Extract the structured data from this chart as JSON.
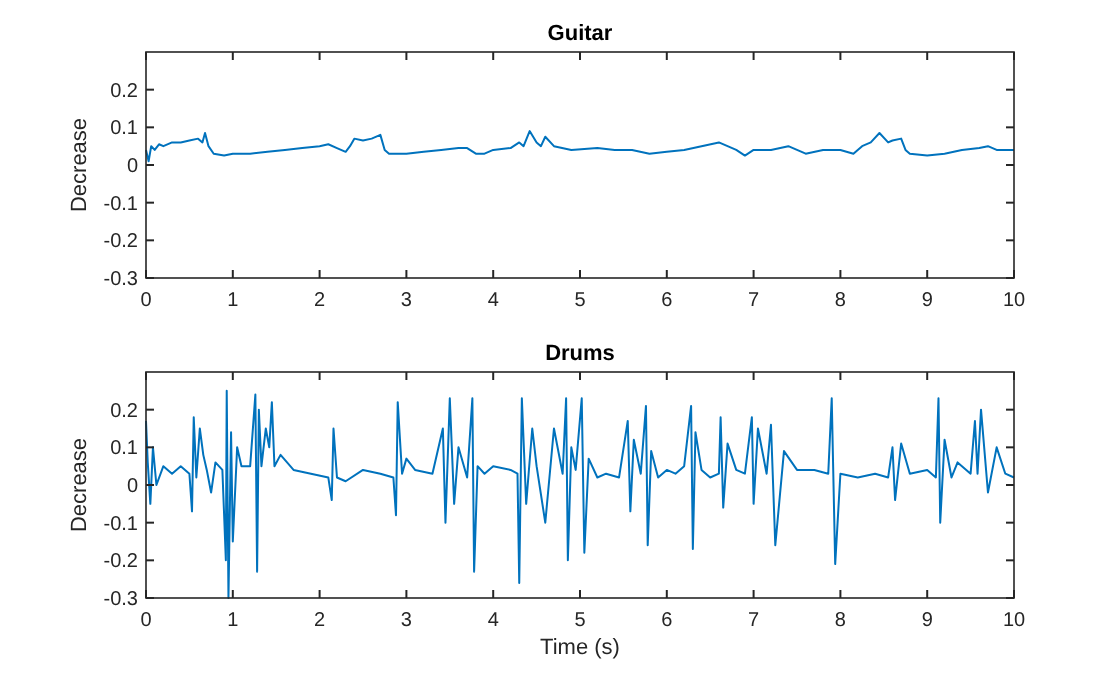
{
  "chart_data": [
    {
      "type": "line",
      "title": "Guitar",
      "ylabel": "Decrease",
      "xlim": [
        0,
        10
      ],
      "xticks": [
        0,
        1,
        2,
        3,
        4,
        5,
        6,
        7,
        8,
        9,
        10
      ],
      "ylim": [
        -0.3,
        0.3
      ],
      "yticks": [
        -0.3,
        -0.2,
        -0.1,
        0,
        0.1,
        0.2
      ],
      "grid": false,
      "series": [
        {
          "color": "#0072bd",
          "x": [
            0,
            0.03,
            0.06,
            0.1,
            0.15,
            0.2,
            0.3,
            0.4,
            0.5,
            0.6,
            0.65,
            0.68,
            0.72,
            0.78,
            0.9,
            1.0,
            1.2,
            1.4,
            1.6,
            1.8,
            2.0,
            2.1,
            2.2,
            2.3,
            2.35,
            2.4,
            2.5,
            2.6,
            2.7,
            2.75,
            2.8,
            3.0,
            3.2,
            3.4,
            3.6,
            3.7,
            3.8,
            3.9,
            4.0,
            4.2,
            4.3,
            4.35,
            4.42,
            4.5,
            4.55,
            4.6,
            4.7,
            4.9,
            5.2,
            5.4,
            5.6,
            5.8,
            6.0,
            6.2,
            6.4,
            6.6,
            6.8,
            6.9,
            7.0,
            7.2,
            7.4,
            7.5,
            7.6,
            7.8,
            8.0,
            8.15,
            8.25,
            8.35,
            8.45,
            8.55,
            8.6,
            8.7,
            8.75,
            8.8,
            9.0,
            9.2,
            9.4,
            9.6,
            9.7,
            9.8,
            10
          ],
          "values": [
            0.04,
            0.01,
            0.05,
            0.04,
            0.055,
            0.05,
            0.06,
            0.06,
            0.065,
            0.07,
            0.06,
            0.085,
            0.05,
            0.03,
            0.025,
            0.03,
            0.03,
            0.035,
            0.04,
            0.045,
            0.05,
            0.055,
            0.045,
            0.035,
            0.05,
            0.07,
            0.065,
            0.07,
            0.08,
            0.04,
            0.03,
            0.03,
            0.035,
            0.04,
            0.045,
            0.045,
            0.03,
            0.03,
            0.04,
            0.045,
            0.06,
            0.05,
            0.09,
            0.06,
            0.05,
            0.075,
            0.05,
            0.04,
            0.045,
            0.04,
            0.04,
            0.03,
            0.035,
            0.04,
            0.05,
            0.06,
            0.04,
            0.025,
            0.04,
            0.04,
            0.05,
            0.04,
            0.03,
            0.04,
            0.04,
            0.03,
            0.05,
            0.06,
            0.085,
            0.06,
            0.065,
            0.07,
            0.04,
            0.03,
            0.025,
            0.03,
            0.04,
            0.045,
            0.05,
            0.04,
            0.04
          ]
        }
      ]
    },
    {
      "type": "line",
      "title": "Drums",
      "xlabel": "Time (s)",
      "ylabel": "Decrease",
      "xlim": [
        0,
        10
      ],
      "xticks": [
        0,
        1,
        2,
        3,
        4,
        5,
        6,
        7,
        8,
        9,
        10
      ],
      "ylim": [
        -0.3,
        0.3
      ],
      "yticks": [
        -0.3,
        -0.2,
        -0.1,
        0,
        0.1,
        0.2
      ],
      "grid": false,
      "series": [
        {
          "color": "#0072bd",
          "x": [
            0,
            0.02,
            0.05,
            0.08,
            0.12,
            0.2,
            0.3,
            0.4,
            0.5,
            0.53,
            0.55,
            0.58,
            0.62,
            0.66,
            0.7,
            0.75,
            0.8,
            0.88,
            0.92,
            0.93,
            0.95,
            0.98,
            1.0,
            1.05,
            1.1,
            1.2,
            1.26,
            1.28,
            1.3,
            1.33,
            1.38,
            1.42,
            1.45,
            1.48,
            1.55,
            1.7,
            1.9,
            2.1,
            2.14,
            2.16,
            2.2,
            2.3,
            2.5,
            2.7,
            2.85,
            2.88,
            2.9,
            2.95,
            3.0,
            3.1,
            3.3,
            3.42,
            3.45,
            3.5,
            3.55,
            3.6,
            3.7,
            3.76,
            3.78,
            3.82,
            3.9,
            4.0,
            4.2,
            4.28,
            4.3,
            4.33,
            4.38,
            4.45,
            4.5,
            4.6,
            4.7,
            4.8,
            4.84,
            4.86,
            4.9,
            4.95,
            5.02,
            5.05,
            5.1,
            5.2,
            5.3,
            5.45,
            5.55,
            5.58,
            5.62,
            5.7,
            5.76,
            5.78,
            5.82,
            5.9,
            6.0,
            6.1,
            6.2,
            6.28,
            6.3,
            6.33,
            6.4,
            6.5,
            6.6,
            6.62,
            6.65,
            6.7,
            6.8,
            6.9,
            6.98,
            7.0,
            7.05,
            7.15,
            7.2,
            7.25,
            7.35,
            7.5,
            7.7,
            7.86,
            7.9,
            7.94,
            8.0,
            8.2,
            8.4,
            8.55,
            8.6,
            8.63,
            8.7,
            8.8,
            9.0,
            9.1,
            9.13,
            9.15,
            9.2,
            9.28,
            9.35,
            9.5,
            9.55,
            9.58,
            9.62,
            9.7,
            9.8,
            9.9,
            10
          ],
          "values": [
            0.17,
            0.06,
            -0.05,
            0.1,
            0,
            0.05,
            0.03,
            0.05,
            0.03,
            -0.07,
            0.18,
            0.02,
            0.15,
            0.08,
            0.04,
            -0.02,
            0.06,
            0.04,
            -0.2,
            0.25,
            -0.3,
            0.14,
            -0.15,
            0.1,
            0.05,
            0.05,
            0.24,
            -0.23,
            0.2,
            0.05,
            0.15,
            0.1,
            0.22,
            0.05,
            0.08,
            0.04,
            0.03,
            0.02,
            -0.04,
            0.15,
            0.02,
            0.01,
            0.04,
            0.03,
            0.02,
            -0.08,
            0.22,
            0.03,
            0.07,
            0.04,
            0.03,
            0.15,
            -0.1,
            0.23,
            -0.05,
            0.1,
            0.02,
            0.23,
            -0.23,
            0.05,
            0.03,
            0.05,
            0.04,
            0.03,
            -0.26,
            0.23,
            -0.05,
            0.15,
            0.05,
            -0.1,
            0.15,
            0.03,
            0.23,
            -0.2,
            0.1,
            0.04,
            0.23,
            -0.18,
            0.07,
            0.02,
            0.03,
            0.02,
            0.17,
            -0.07,
            0.12,
            0.03,
            0.21,
            -0.16,
            0.09,
            0.02,
            0.04,
            0.03,
            0.05,
            0.21,
            -0.17,
            0.14,
            0.04,
            0.02,
            0.03,
            0.18,
            -0.06,
            0.11,
            0.04,
            0.03,
            0.18,
            -0.05,
            0.15,
            0.03,
            0.16,
            -0.16,
            0.09,
            0.04,
            0.04,
            0.03,
            0.23,
            -0.21,
            0.03,
            0.02,
            0.03,
            0.02,
            0.1,
            -0.04,
            0.11,
            0.03,
            0.04,
            0.02,
            0.23,
            -0.1,
            0.12,
            0.02,
            0.06,
            0.03,
            0.17,
            0.03,
            0.2,
            -0.02,
            0.1,
            0.03,
            0.02
          ]
        }
      ]
    }
  ]
}
